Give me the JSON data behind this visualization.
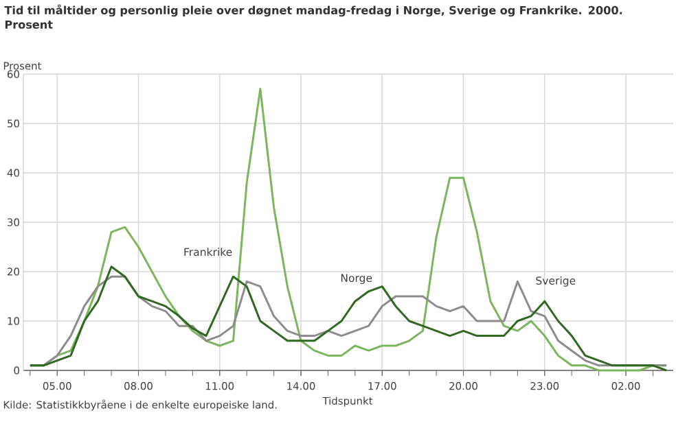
{
  "chart_data": {
    "type": "line",
    "title": "Tid til måltider og personlig pleie over døgnet mandag-fredag i Norge, Sverige og Frankrike. 2000. Prosent",
    "ylabel": "Prosent",
    "xlabel": "Tidspunkt",
    "annotations": [
      "Kilde: Statistikkbyråene i de enkelte europeiske land."
    ],
    "x": [
      "2000-01-01T04:00",
      "2000-01-01T04:30",
      "2000-01-01T05:00",
      "2000-01-01T05:30",
      "2000-01-01T06:00",
      "2000-01-01T06:30",
      "2000-01-01T07:00",
      "2000-01-01T07:30",
      "2000-01-01T08:00",
      "2000-01-01T08:30",
      "2000-01-01T09:00",
      "2000-01-01T09:30",
      "2000-01-01T10:00",
      "2000-01-01T10:30",
      "2000-01-01T11:00",
      "2000-01-01T11:30",
      "2000-01-01T12:00",
      "2000-01-01T12:30",
      "2000-01-01T13:00",
      "2000-01-01T13:30",
      "2000-01-01T14:00",
      "2000-01-01T14:30",
      "2000-01-01T15:00",
      "2000-01-01T15:30",
      "2000-01-01T16:00",
      "2000-01-01T16:30",
      "2000-01-01T17:00",
      "2000-01-01T17:30",
      "2000-01-01T18:00",
      "2000-01-01T18:30",
      "2000-01-01T19:00",
      "2000-01-01T19:30",
      "2000-01-01T20:00",
      "2000-01-01T20:30",
      "2000-01-01T21:00",
      "2000-01-01T21:30",
      "2000-01-01T22:00",
      "2000-01-01T22:30",
      "2000-01-01T23:00",
      "2000-01-01T23:30",
      "2000-01-02T00:00",
      "2000-01-02T00:30",
      "2000-01-02T01:00",
      "2000-01-02T01:30",
      "2000-01-02T02:00",
      "2000-01-02T02:30",
      "2000-01-02T03:00",
      "2000-01-02T03:30"
    ],
    "series": [
      {
        "name": "Frankrike",
        "color": "#7ab65c",
        "values": [
          1,
          1,
          3,
          4,
          10,
          17,
          28,
          29,
          25,
          20,
          15,
          11,
          8,
          6,
          5,
          6,
          38,
          57,
          33,
          17,
          6,
          4,
          3,
          3,
          5,
          4,
          5,
          5,
          6,
          8,
          27,
          39,
          39,
          28,
          14,
          9,
          8,
          10,
          7,
          3,
          1,
          1,
          0,
          0,
          0,
          0,
          1,
          1
        ]
      },
      {
        "name": "Sverige",
        "color": "#8c8c8c",
        "values": [
          1,
          1,
          3,
          7,
          13,
          17,
          19,
          19,
          15,
          13,
          12,
          9,
          9,
          6,
          7,
          9,
          18,
          17,
          11,
          8,
          7,
          7,
          8,
          7,
          8,
          9,
          13,
          15,
          15,
          15,
          13,
          12,
          13,
          10,
          10,
          10,
          18,
          12,
          11,
          6,
          4,
          2,
          1,
          1,
          1,
          1,
          1,
          1
        ]
      },
      {
        "name": "Norge",
        "color": "#2d6a1f",
        "values": [
          1,
          1,
          2,
          3,
          10,
          14,
          21,
          19,
          15,
          14,
          13,
          11,
          8.5,
          7,
          13,
          19,
          17,
          10,
          8,
          6,
          6,
          6,
          8,
          10,
          14,
          16,
          17,
          13,
          10,
          9,
          8,
          7,
          8,
          7,
          7,
          7,
          10,
          11,
          14,
          10,
          7,
          3,
          2,
          1,
          1,
          1,
          1,
          0
        ]
      }
    ],
    "xlim": [
      "2000-01-01T03:45",
      "2000-01-02T03:45"
    ],
    "xticks": [
      {
        "value": "2000-01-01T05:00",
        "label": "05.00"
      },
      {
        "value": "2000-01-01T08:00",
        "label": "08.00"
      },
      {
        "value": "2000-01-01T11:00",
        "label": "11.00"
      },
      {
        "value": "2000-01-01T14:00",
        "label": "14.00"
      },
      {
        "value": "2000-01-01T17:00",
        "label": "17.00"
      },
      {
        "value": "2000-01-01T20:00",
        "label": "20.00"
      },
      {
        "value": "2000-01-01T23:00",
        "label": "23.00"
      },
      {
        "value": "2000-01-02T02:00",
        "label": "02.00"
      }
    ],
    "ylim": [
      0,
      60
    ],
    "yticks": [
      0,
      10,
      20,
      30,
      40,
      50,
      60
    ],
    "grid": true,
    "legend": false,
    "marker": "none",
    "line_style": "solid"
  }
}
